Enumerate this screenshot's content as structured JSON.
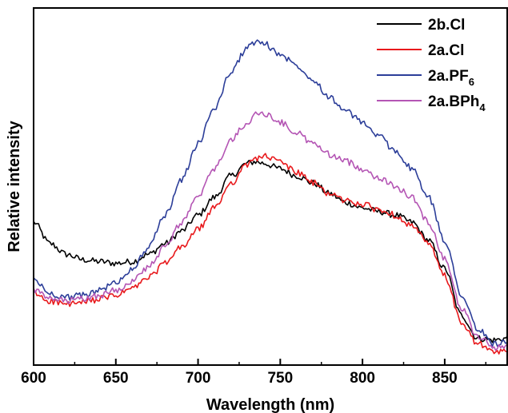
{
  "chart_data": {
    "type": "line",
    "title": "",
    "xlabel": "Wavelength (nm)",
    "ylabel": "Relative intensity",
    "xlim": [
      600,
      888
    ],
    "ylim": [
      0,
      1
    ],
    "xticks": [
      600,
      650,
      700,
      750,
      800,
      850
    ],
    "yticks_shown": false,
    "legend_position": "top-right",
    "series": [
      {
        "name": "2b.Cl",
        "color": "#000000",
        "x": [
          600,
          610,
          620,
          630,
          640,
          650,
          660,
          670,
          680,
          690,
          700,
          710,
          720,
          730,
          735,
          740,
          750,
          760,
          770,
          780,
          790,
          800,
          810,
          820,
          830,
          840,
          850,
          860,
          870,
          880,
          888
        ],
        "y": [
          0.4,
          0.34,
          0.31,
          0.295,
          0.29,
          0.285,
          0.29,
          0.31,
          0.34,
          0.375,
          0.42,
          0.47,
          0.53,
          0.565,
          0.57,
          0.565,
          0.55,
          0.53,
          0.51,
          0.48,
          0.455,
          0.44,
          0.43,
          0.42,
          0.4,
          0.35,
          0.27,
          0.14,
          0.075,
          0.07,
          0.075
        ]
      },
      {
        "name": "2a.Cl",
        "color": "#e8191c",
        "x": [
          600,
          610,
          620,
          630,
          640,
          650,
          660,
          670,
          680,
          690,
          700,
          710,
          720,
          730,
          735,
          740,
          750,
          760,
          770,
          780,
          790,
          800,
          810,
          820,
          830,
          840,
          850,
          860,
          870,
          880,
          888
        ],
        "y": [
          0.2,
          0.18,
          0.17,
          0.175,
          0.185,
          0.195,
          0.215,
          0.245,
          0.285,
          0.33,
          0.38,
          0.44,
          0.51,
          0.56,
          0.58,
          0.585,
          0.57,
          0.54,
          0.51,
          0.48,
          0.46,
          0.45,
          0.435,
          0.42,
          0.39,
          0.34,
          0.25,
          0.12,
          0.06,
          0.035,
          0.04
        ]
      },
      {
        "name": "2a.PF6",
        "color": "#2c3e99",
        "x": [
          600,
          610,
          620,
          630,
          640,
          650,
          660,
          670,
          680,
          690,
          700,
          710,
          720,
          730,
          735,
          740,
          750,
          760,
          770,
          780,
          790,
          800,
          810,
          820,
          830,
          840,
          850,
          860,
          870,
          880,
          888
        ],
        "y": [
          0.24,
          0.2,
          0.19,
          0.195,
          0.21,
          0.23,
          0.27,
          0.33,
          0.42,
          0.52,
          0.62,
          0.72,
          0.82,
          0.89,
          0.905,
          0.9,
          0.87,
          0.84,
          0.8,
          0.75,
          0.71,
          0.68,
          0.64,
          0.6,
          0.55,
          0.47,
          0.35,
          0.2,
          0.1,
          0.06,
          0.065
        ]
      },
      {
        "name": "2a.BPh4",
        "color": "#b455b4",
        "x": [
          600,
          610,
          620,
          630,
          640,
          650,
          660,
          670,
          680,
          690,
          700,
          710,
          720,
          730,
          735,
          740,
          750,
          760,
          770,
          780,
          790,
          800,
          810,
          820,
          830,
          840,
          850,
          860,
          870,
          880,
          888
        ],
        "y": [
          0.21,
          0.185,
          0.18,
          0.185,
          0.195,
          0.21,
          0.235,
          0.275,
          0.33,
          0.4,
          0.47,
          0.55,
          0.63,
          0.68,
          0.7,
          0.705,
          0.68,
          0.65,
          0.62,
          0.59,
          0.57,
          0.55,
          0.525,
          0.5,
          0.47,
          0.4,
          0.3,
          0.16,
          0.08,
          0.05,
          0.055
        ]
      }
    ]
  },
  "legend": [
    {
      "label": "2b.Cl",
      "color": "#000000",
      "base": "2b.Cl",
      "sub": ""
    },
    {
      "label": "2a.Cl",
      "color": "#e8191c",
      "base": "2a.Cl",
      "sub": ""
    },
    {
      "label": "2a.PF6",
      "color": "#2c3e99",
      "base": "2a.PF",
      "sub": "6"
    },
    {
      "label": "2a.BPh4",
      "color": "#b455b4",
      "base": "2a.BPh",
      "sub": "4"
    }
  ]
}
